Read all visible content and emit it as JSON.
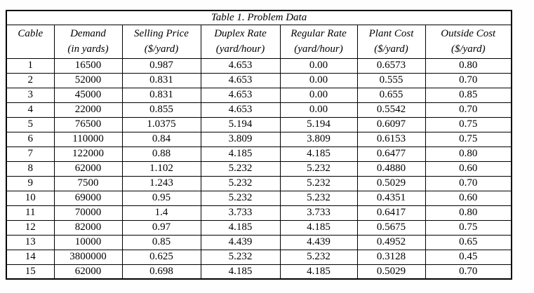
{
  "page": {
    "background_color": "#fefefe",
    "text_color": "#000000",
    "border_color": "#000000"
  },
  "table": {
    "title": "Table 1. Problem Data",
    "columns": [
      {
        "label": "Cable",
        "unit": ""
      },
      {
        "label": "Demand",
        "unit": "(in yards)"
      },
      {
        "label": "Selling Price",
        "unit": "($/yard)"
      },
      {
        "label": "Duplex Rate",
        "unit": "(yard/hour)"
      },
      {
        "label": "Regular Rate",
        "unit": "(yard/hour)"
      },
      {
        "label": "Plant Cost",
        "unit": "($/yard)"
      },
      {
        "label": "Outside Cost",
        "unit": "($/yard)"
      }
    ],
    "rows": [
      [
        "1",
        "16500",
        "0.987",
        "4.653",
        "0.00",
        "0.6573",
        "0.80"
      ],
      [
        "2",
        "52000",
        "0.831",
        "4.653",
        "0.00",
        "0.555",
        "0.70"
      ],
      [
        "3",
        "45000",
        "0.831",
        "4.653",
        "0.00",
        "0.655",
        "0.85"
      ],
      [
        "4",
        "22000",
        "0.855",
        "4.653",
        "0.00",
        "0.5542",
        "0.70"
      ],
      [
        "5",
        "76500",
        "1.0375",
        "5.194",
        "5.194",
        "0.6097",
        "0.75"
      ],
      [
        "6",
        "110000",
        "0.84",
        "3.809",
        "3.809",
        "0.6153",
        "0.75"
      ],
      [
        "7",
        "122000",
        "0.88",
        "4.185",
        "4.185",
        "0.6477",
        "0.80"
      ],
      [
        "8",
        "62000",
        "1.102",
        "5.232",
        "5.232",
        "0.4880",
        "0.60"
      ],
      [
        "9",
        "7500",
        "1.243",
        "5.232",
        "5.232",
        "0.5029",
        "0.70"
      ],
      [
        "10",
        "69000",
        "0.95",
        "5.232",
        "5.232",
        "0.4351",
        "0.60"
      ],
      [
        "11",
        "70000",
        "1.4",
        "3.733",
        "3.733",
        "0.6417",
        "0.80"
      ],
      [
        "12",
        "82000",
        "0.97",
        "4.185",
        "4.185",
        "0.5675",
        "0.75"
      ],
      [
        "13",
        "10000",
        "0.85",
        "4.439",
        "4.439",
        "0.4952",
        "0.65"
      ],
      [
        "14",
        "3800000",
        "0.625",
        "5.232",
        "5.232",
        "0.3128",
        "0.45"
      ],
      [
        "15",
        "62000",
        "0.698",
        "4.185",
        "4.185",
        "0.5029",
        "0.70"
      ]
    ]
  }
}
